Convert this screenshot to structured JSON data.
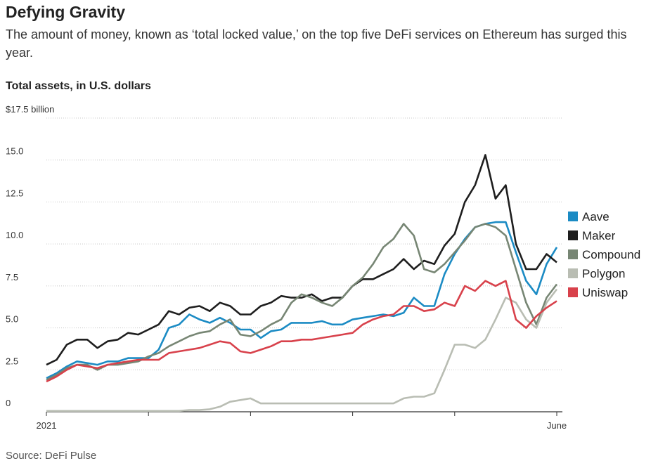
{
  "chart_data": {
    "type": "line",
    "title": "Defying Gravity",
    "subtitle": "The amount of money, known as ‘total locked value,’ on the top five DeFi services on Ethereum has surged this year.",
    "y_label": "Total assets, in U.S. dollars",
    "source": "Source: DeFi Pulse",
    "categories": [
      "2021",
      null,
      null,
      null,
      null,
      null,
      null,
      null,
      null,
      null,
      null,
      null,
      null,
      null,
      null,
      null,
      null,
      null,
      null,
      null,
      null,
      null,
      null,
      null,
      null,
      null,
      null,
      null,
      null,
      null,
      null,
      null,
      null,
      null,
      null,
      null,
      null,
      null,
      null,
      null,
      null,
      null,
      null,
      null,
      null,
      null,
      null,
      null,
      null,
      null,
      "June"
    ],
    "ylim": [
      0,
      17.5
    ],
    "yticks": [
      0,
      {
        "value": 2.5,
        "label": "2.5"
      },
      {
        "value": 5,
        "label": "5.0"
      },
      {
        "value": 7.5,
        "label": "7.5"
      },
      {
        "value": 10,
        "label": "10.0"
      },
      {
        "value": 12.5,
        "label": "12.5"
      },
      {
        "value": 15,
        "label": "15.0"
      },
      {
        "value": 17.5,
        "label": "$17.5 billion"
      }
    ],
    "grid": true,
    "legend": "right",
    "series": [
      {
        "name": "Aave",
        "color": "#1b8bc4",
        "values": [
          2.0,
          2.3,
          2.7,
          3.0,
          2.9,
          2.8,
          3.0,
          3.0,
          3.2,
          3.2,
          3.2,
          3.7,
          5.0,
          5.2,
          5.8,
          5.5,
          5.3,
          5.6,
          5.3,
          4.9,
          4.9,
          4.4,
          4.8,
          4.9,
          5.3,
          5.3,
          5.3,
          5.4,
          5.2,
          5.2,
          5.5,
          5.6,
          5.7,
          5.8,
          5.7,
          5.9,
          6.8,
          6.3,
          6.3,
          8.2,
          9.4,
          10.3,
          11.0,
          11.2,
          11.3,
          11.3,
          9.5,
          7.8,
          7.0,
          8.8,
          9.8
        ]
      },
      {
        "name": "Maker",
        "color": "#1e1e1e",
        "values": [
          2.8,
          3.1,
          4.0,
          4.3,
          4.3,
          3.8,
          4.2,
          4.3,
          4.7,
          4.6,
          4.9,
          5.2,
          6.0,
          5.8,
          6.2,
          6.3,
          6.0,
          6.5,
          6.3,
          5.8,
          5.8,
          6.3,
          6.5,
          6.9,
          6.8,
          6.8,
          7.0,
          6.6,
          6.8,
          6.8,
          7.5,
          7.9,
          7.9,
          8.2,
          8.5,
          9.1,
          8.5,
          9.0,
          8.8,
          9.9,
          10.6,
          12.5,
          13.5,
          15.3,
          12.7,
          13.5,
          10.0,
          8.5,
          8.5,
          9.4,
          8.9
        ]
      },
      {
        "name": "Compound",
        "color": "#778674",
        "values": [
          1.9,
          2.2,
          2.6,
          2.8,
          2.8,
          2.5,
          2.8,
          2.8,
          2.9,
          3.0,
          3.3,
          3.5,
          3.9,
          4.2,
          4.5,
          4.7,
          4.8,
          5.2,
          5.5,
          4.6,
          4.5,
          4.8,
          5.2,
          5.5,
          6.5,
          7.0,
          6.8,
          6.5,
          6.3,
          6.8,
          7.5,
          8.0,
          8.8,
          9.8,
          10.3,
          11.2,
          10.5,
          8.5,
          8.3,
          8.8,
          9.5,
          10.2,
          11.0,
          11.2,
          11.0,
          10.5,
          8.5,
          6.5,
          5.2,
          6.8,
          7.6
        ]
      },
      {
        "name": "Polygon",
        "color": "#b9bdb3",
        "values": [
          0.05,
          0.05,
          0.05,
          0.05,
          0.05,
          0.05,
          0.05,
          0.05,
          0.05,
          0.05,
          0.05,
          0.05,
          0.05,
          0.05,
          0.1,
          0.1,
          0.15,
          0.3,
          0.6,
          0.7,
          0.8,
          0.5,
          0.5,
          0.5,
          0.5,
          0.5,
          0.5,
          0.5,
          0.5,
          0.5,
          0.5,
          0.5,
          0.5,
          0.5,
          0.5,
          0.8,
          0.9,
          0.9,
          1.1,
          2.5,
          4.0,
          4.0,
          3.8,
          4.3,
          5.5,
          6.8,
          6.5,
          5.5,
          5.0,
          6.5,
          7.3
        ]
      },
      {
        "name": "Uniswap",
        "color": "#d8414b",
        "values": [
          1.8,
          2.1,
          2.5,
          2.8,
          2.7,
          2.6,
          2.8,
          2.9,
          3.0,
          3.1,
          3.1,
          3.1,
          3.5,
          3.6,
          3.7,
          3.8,
          4.0,
          4.2,
          4.1,
          3.6,
          3.5,
          3.7,
          3.9,
          4.2,
          4.2,
          4.3,
          4.3,
          4.4,
          4.5,
          4.6,
          4.7,
          5.2,
          5.5,
          5.7,
          5.8,
          6.3,
          6.3,
          6.0,
          6.1,
          6.5,
          6.3,
          7.5,
          7.2,
          7.8,
          7.5,
          7.8,
          5.5,
          5.0,
          5.7,
          6.2,
          6.6
        ]
      }
    ]
  }
}
